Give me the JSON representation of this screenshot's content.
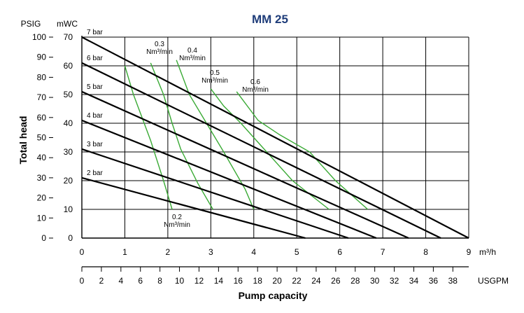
{
  "chart_data": {
    "type": "line",
    "title": "MM 25",
    "ylabel": "Total head",
    "xlabel": "Pump capacity",
    "y_units_left": "PSIG",
    "y_units_right": "mWC",
    "x_units_primary": "m³/h",
    "x_units_secondary": "USGPM",
    "xlim": [
      0,
      9
    ],
    "ylim_mwc": [
      0,
      70
    ],
    "ylim_psig": [
      0,
      100
    ],
    "x_ticks": [
      "0",
      "1",
      "2",
      "3",
      "4",
      "5",
      "6",
      "7",
      "8",
      "9"
    ],
    "y_ticks_mwc": [
      "0",
      "10",
      "20",
      "30",
      "40",
      "50",
      "60",
      "70"
    ],
    "y_ticks_psig": [
      "0",
      "10",
      "20",
      "30",
      "40",
      "50",
      "60",
      "70",
      "80",
      "90",
      "100"
    ],
    "usgpm_ticks": [
      "0",
      "2",
      "4",
      "6",
      "8",
      "10",
      "12",
      "14",
      "16",
      "18",
      "20",
      "22",
      "24",
      "26",
      "28",
      "30",
      "32",
      "34",
      "36",
      "38"
    ],
    "grid": true,
    "pressure_series": [
      {
        "name": "7 bar",
        "x": [
          0,
          9
        ],
        "y": [
          70,
          0
        ]
      },
      {
        "name": "6 bar",
        "x": [
          0,
          8.35
        ],
        "y": [
          61,
          0
        ]
      },
      {
        "name": "5 bar",
        "x": [
          0,
          7.6
        ],
        "y": [
          51,
          0
        ]
      },
      {
        "name": "4 bar",
        "x": [
          0,
          6.85
        ],
        "y": [
          41,
          0
        ]
      },
      {
        "name": "3 bar",
        "x": [
          0,
          6.2
        ],
        "y": [
          31,
          0
        ]
      },
      {
        "name": "2 bar",
        "x": [
          0,
          5.2
        ],
        "y": [
          21,
          0
        ]
      }
    ],
    "air_consumption_series": [
      {
        "name": "0.2 Nm³/min",
        "x": [
          1,
          1.2,
          1.6,
          1.9,
          2.1
        ],
        "y": [
          60,
          50,
          34,
          20,
          10
        ]
      },
      {
        "name": "0.3 Nm³/min",
        "x": [
          1.6,
          1.9,
          2.1,
          2.3,
          2.7,
          3.05
        ],
        "y": [
          61,
          50,
          40,
          31,
          19,
          10
        ]
      },
      {
        "name": "0.4 Nm³/min",
        "x": [
          2.2,
          2.5,
          2.9,
          3.3,
          3.8,
          4.0
        ],
        "y": [
          62,
          50,
          40,
          30,
          17,
          10
        ]
      },
      {
        "name": "0.5 Nm³/min",
        "x": [
          3.0,
          3.3,
          3.7,
          4.3,
          4.9,
          5.75
        ],
        "y": [
          52,
          46,
          40,
          30,
          20,
          10
        ]
      },
      {
        "name": "0.6 Nm³/min",
        "x": [
          3.6,
          4.1,
          4.6,
          5.3,
          5.9,
          6.65
        ],
        "y": [
          51,
          41,
          36,
          30,
          20,
          10
        ]
      }
    ],
    "air_labels": [
      {
        "line1": "0.2",
        "line2": "Nm³/min"
      },
      {
        "line1": "0.3",
        "line2": "Nm³/min"
      },
      {
        "line1": "0.4",
        "line2": "Nm³/min"
      },
      {
        "line1": "0.5",
        "line2": "Nm³/min"
      },
      {
        "line1": "0.6",
        "line2": "Nm³/min"
      }
    ],
    "colors": {
      "pressure": "#000000",
      "air": "#3aaa35",
      "title": "#1f3d7a",
      "grid": "#000000"
    }
  }
}
